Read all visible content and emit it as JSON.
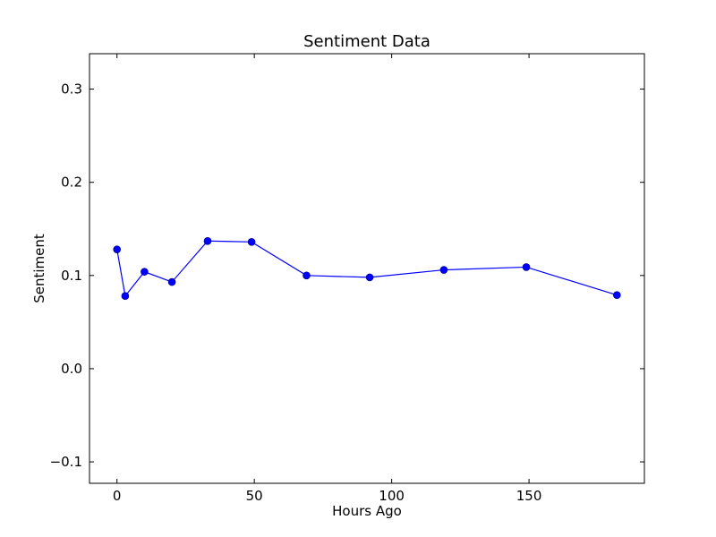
{
  "chart_data": {
    "type": "line",
    "title": "Sentiment Data",
    "xlabel": "Hours Ago",
    "ylabel": "Sentiment",
    "xlim": [
      -10,
      192
    ],
    "ylim": [
      -0.123,
      0.338
    ],
    "xticks": [
      0,
      50,
      100,
      150
    ],
    "xtick_labels": [
      "0",
      "50",
      "100",
      "150"
    ],
    "yticks": [
      -0.1,
      0.0,
      0.1,
      0.2,
      0.3
    ],
    "ytick_labels": [
      "−0.1",
      "0.0",
      "0.1",
      "0.2",
      "0.3"
    ],
    "grid": false,
    "legend": null,
    "series": [
      {
        "color": "#0000ff",
        "marker": "circle",
        "x": [
          0,
          3,
          10,
          20,
          33,
          49,
          69,
          92,
          119,
          149,
          182
        ],
        "y": [
          0.128,
          0.078,
          0.104,
          0.093,
          0.137,
          0.136,
          0.1,
          0.098,
          0.106,
          0.109,
          0.079
        ]
      }
    ]
  }
}
